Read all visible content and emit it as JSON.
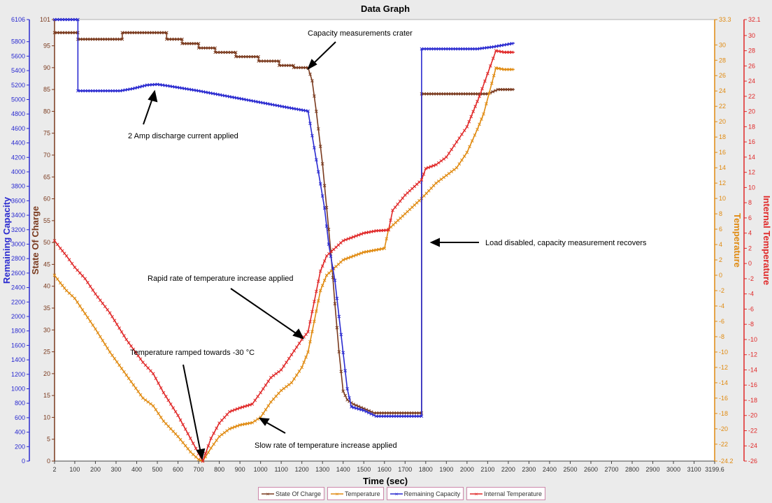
{
  "window": {
    "title": "Data Graph"
  },
  "chart_data": {
    "type": "line",
    "title": "Data Graph",
    "xlabel": "Time (sec)",
    "xlim": [
      2,
      3199.6
    ],
    "x_ticks": [
      2,
      100,
      200,
      300,
      400,
      500,
      600,
      700,
      800,
      900,
      1000,
      1100,
      1200,
      1300,
      1400,
      1500,
      1600,
      1700,
      1800,
      1900,
      2000,
      2100,
      2200,
      2300,
      2400,
      2500,
      2600,
      2700,
      2800,
      2900,
      3000,
      3100,
      3199.6
    ],
    "x_tick_labels": [
      "2",
      "100",
      "200",
      "300",
      "400",
      "500",
      "600",
      "700",
      "800",
      "900",
      "1000",
      "1100",
      "1200",
      "1300",
      "1400",
      "1500",
      "1600",
      "1700",
      "1800",
      "1900",
      "2000",
      "2100",
      "2200",
      "2300",
      "2400",
      "2500",
      "2600",
      "2700",
      "2800",
      "2900",
      "3000",
      "3100",
      "3199.6"
    ],
    "axes": [
      {
        "key": "capacity",
        "label": "Remaining Capacity",
        "color": "#2a2ad0",
        "ylim": [
          0,
          6106
        ],
        "ticks": [
          0,
          200,
          400,
          600,
          800,
          1000,
          1200,
          1400,
          1600,
          1800,
          2000,
          2200,
          2400,
          2600,
          2800,
          3000,
          3200,
          3400,
          3600,
          3800,
          4000,
          4200,
          4400,
          4600,
          4800,
          5000,
          5200,
          5400,
          5600,
          5800,
          6106
        ],
        "tick_labels": [
          "0",
          "200",
          "400",
          "600",
          "800",
          "1000",
          "1200",
          "1400",
          "1600",
          "1800",
          "2000",
          "2200",
          "2400",
          "2600",
          "2800",
          "3000",
          "3200",
          "3400",
          "3600",
          "3800",
          "4000",
          "4200",
          "4400",
          "4600",
          "4800",
          "5000",
          "5200",
          "5400",
          "5600",
          "5800",
          "6106"
        ]
      },
      {
        "key": "soc",
        "label": "State Of Charge",
        "color": "#7a3a1e",
        "ylim": [
          0,
          101
        ],
        "ticks": [
          0,
          5,
          10,
          15,
          20,
          25,
          30,
          35,
          40,
          45,
          50,
          55,
          60,
          65,
          70,
          75,
          80,
          85,
          90,
          95,
          101
        ],
        "tick_labels": [
          "0",
          "5",
          "10",
          "15",
          "20",
          "25",
          "30",
          "35",
          "40",
          "45",
          "50",
          "55",
          "60",
          "65",
          "70",
          "75",
          "80",
          "85",
          "90",
          "95",
          "101"
        ]
      },
      {
        "key": "temp",
        "label": "Temperature",
        "color": "#e08a10",
        "ylim": [
          -24.2,
          33.3
        ],
        "ticks": [
          -24.2,
          -22,
          -20,
          -18,
          -16,
          -14,
          -12,
          -10,
          -8,
          -6,
          -4,
          -2,
          0,
          2,
          4,
          6,
          8,
          10,
          12,
          14,
          16,
          18,
          20,
          22,
          24,
          26,
          28,
          30,
          33.3
        ],
        "tick_labels": [
          "-24.2",
          "-22",
          "-20",
          "-18",
          "-16",
          "-14",
          "-12",
          "-10",
          "-8",
          "-6",
          "-4",
          "-2",
          "0",
          "2",
          "4",
          "6",
          "8",
          "10",
          "12",
          "14",
          "16",
          "18",
          "20",
          "22",
          "24",
          "26",
          "28",
          "30",
          "33.3"
        ]
      },
      {
        "key": "itemp",
        "label": "Internal Temperature",
        "color": "#e02828",
        "ylim": [
          -26,
          32.1
        ],
        "ticks": [
          -26,
          -24,
          -22,
          -20,
          -18,
          -16,
          -14,
          -12,
          -10,
          -8,
          -6,
          -4,
          -2,
          0,
          2,
          4,
          6,
          8,
          10,
          12,
          14,
          16,
          18,
          20,
          22,
          24,
          26,
          28,
          30,
          32.1
        ],
        "tick_labels": [
          "-26",
          "-24",
          "-22",
          "-20",
          "-18",
          "-16",
          "-14",
          "-12",
          "-10",
          "-8",
          "-6",
          "-4",
          "-2",
          "0",
          "2",
          "4",
          "6",
          "8",
          "10",
          "12",
          "14",
          "16",
          "18",
          "20",
          "22",
          "24",
          "26",
          "28",
          "30",
          "32.1"
        ]
      }
    ],
    "series": [
      {
        "name": "State Of Charge",
        "axis": "soc",
        "color": "#7a3a1e",
        "points": [
          [
            2,
            98
          ],
          [
            115,
            98
          ],
          [
            115,
            96.5
          ],
          [
            330,
            96.5
          ],
          [
            330,
            98
          ],
          [
            545,
            98
          ],
          [
            545,
            96.5
          ],
          [
            620,
            96.5
          ],
          [
            620,
            95.5
          ],
          [
            700,
            95.5
          ],
          [
            700,
            94.5
          ],
          [
            780,
            94.5
          ],
          [
            780,
            93.5
          ],
          [
            880,
            93.5
          ],
          [
            880,
            92.5
          ],
          [
            990,
            92.5
          ],
          [
            990,
            91.5
          ],
          [
            1090,
            91.5
          ],
          [
            1090,
            90.5
          ],
          [
            1160,
            90.5
          ],
          [
            1160,
            90
          ],
          [
            1230,
            90
          ],
          [
            1250,
            87
          ],
          [
            1270,
            80
          ],
          [
            1300,
            68
          ],
          [
            1320,
            58
          ],
          [
            1340,
            48
          ],
          [
            1360,
            36
          ],
          [
            1380,
            25
          ],
          [
            1400,
            16
          ],
          [
            1420,
            14
          ],
          [
            1450,
            13
          ],
          [
            1500,
            12
          ],
          [
            1550,
            11
          ],
          [
            1780,
            11
          ],
          [
            1780,
            84
          ],
          [
            2100,
            84
          ],
          [
            2150,
            85
          ],
          [
            2230,
            85
          ]
        ]
      },
      {
        "name": "Temperature",
        "axis": "temp",
        "color": "#e08a10",
        "points": [
          [
            2,
            0
          ],
          [
            30,
            -1
          ],
          [
            60,
            -2
          ],
          [
            100,
            -3
          ],
          [
            150,
            -5
          ],
          [
            200,
            -7
          ],
          [
            270,
            -10
          ],
          [
            350,
            -13
          ],
          [
            430,
            -16
          ],
          [
            480,
            -17
          ],
          [
            530,
            -19
          ],
          [
            600,
            -21
          ],
          [
            660,
            -23
          ],
          [
            700,
            -24
          ],
          [
            720,
            -24.2
          ],
          [
            760,
            -22.5
          ],
          [
            800,
            -21
          ],
          [
            850,
            -20
          ],
          [
            900,
            -19.5
          ],
          [
            960,
            -19.2
          ],
          [
            1000,
            -18.5
          ],
          [
            1050,
            -16.5
          ],
          [
            1100,
            -15
          ],
          [
            1150,
            -14
          ],
          [
            1200,
            -12
          ],
          [
            1230,
            -10
          ],
          [
            1260,
            -6
          ],
          [
            1290,
            -2
          ],
          [
            1320,
            0
          ],
          [
            1400,
            2
          ],
          [
            1500,
            3
          ],
          [
            1560,
            3.3
          ],
          [
            1600,
            3.5
          ],
          [
            1620,
            6
          ],
          [
            1700,
            8
          ],
          [
            1780,
            10
          ],
          [
            1850,
            12
          ],
          [
            1900,
            13
          ],
          [
            1950,
            14
          ],
          [
            2000,
            16
          ],
          [
            2050,
            19
          ],
          [
            2080,
            21
          ],
          [
            2120,
            25
          ],
          [
            2140,
            27
          ],
          [
            2180,
            26.8
          ],
          [
            2230,
            26.8
          ]
        ]
      },
      {
        "name": "Remaining Capacity",
        "axis": "capacity",
        "color": "#2a2ad0",
        "points": [
          [
            2,
            6106
          ],
          [
            115,
            6106
          ],
          [
            115,
            5120
          ],
          [
            320,
            5120
          ],
          [
            380,
            5150
          ],
          [
            450,
            5200
          ],
          [
            500,
            5210
          ],
          [
            550,
            5190
          ],
          [
            700,
            5120
          ],
          [
            850,
            5040
          ],
          [
            1000,
            4960
          ],
          [
            1150,
            4880
          ],
          [
            1230,
            4840
          ],
          [
            1250,
            4500
          ],
          [
            1280,
            4000
          ],
          [
            1310,
            3500
          ],
          [
            1330,
            3000
          ],
          [
            1360,
            2500
          ],
          [
            1380,
            2000
          ],
          [
            1400,
            1500
          ],
          [
            1420,
            1000
          ],
          [
            1440,
            750
          ],
          [
            1500,
            700
          ],
          [
            1560,
            620
          ],
          [
            1780,
            620
          ],
          [
            1780,
            5700
          ],
          [
            2050,
            5700
          ],
          [
            2130,
            5730
          ],
          [
            2230,
            5780
          ]
        ]
      },
      {
        "name": "Internal Temperature",
        "axis": "itemp",
        "color": "#e02828",
        "points": [
          [
            2,
            3
          ],
          [
            30,
            2
          ],
          [
            60,
            1
          ],
          [
            100,
            -0.5
          ],
          [
            150,
            -2
          ],
          [
            200,
            -4
          ],
          [
            270,
            -6.5
          ],
          [
            350,
            -10
          ],
          [
            430,
            -13
          ],
          [
            480,
            -14.5
          ],
          [
            530,
            -17
          ],
          [
            600,
            -20
          ],
          [
            660,
            -23
          ],
          [
            700,
            -25
          ],
          [
            720,
            -26
          ],
          [
            760,
            -23
          ],
          [
            800,
            -21
          ],
          [
            850,
            -19.5
          ],
          [
            900,
            -19
          ],
          [
            960,
            -18.5
          ],
          [
            1000,
            -17
          ],
          [
            1050,
            -15
          ],
          [
            1100,
            -14
          ],
          [
            1150,
            -12
          ],
          [
            1200,
            -10
          ],
          [
            1230,
            -9
          ],
          [
            1260,
            -5
          ],
          [
            1290,
            -1
          ],
          [
            1320,
            1
          ],
          [
            1400,
            3
          ],
          [
            1500,
            4
          ],
          [
            1560,
            4.3
          ],
          [
            1620,
            4.4
          ],
          [
            1640,
            7
          ],
          [
            1700,
            9
          ],
          [
            1780,
            11
          ],
          [
            1800,
            12.5
          ],
          [
            1850,
            13
          ],
          [
            1900,
            14
          ],
          [
            1950,
            16
          ],
          [
            2000,
            18
          ],
          [
            2030,
            20
          ],
          [
            2060,
            22
          ],
          [
            2100,
            25
          ],
          [
            2140,
            28
          ],
          [
            2180,
            27.8
          ],
          [
            2230,
            27.8
          ]
        ]
      }
    ],
    "annotations": [
      {
        "text": "Capacity measurements crater"
      },
      {
        "text": "2 Amp discharge current applied"
      },
      {
        "text": "Load disabled, capacity measurement recovers"
      },
      {
        "text": "Rapid rate of temperature  increase applied"
      },
      {
        "text": "Temperature  ramped towards -30 °C"
      },
      {
        "text": "Slow rate of temperature  increase applied"
      }
    ],
    "legend": {
      "placement": "bottom-center"
    }
  }
}
